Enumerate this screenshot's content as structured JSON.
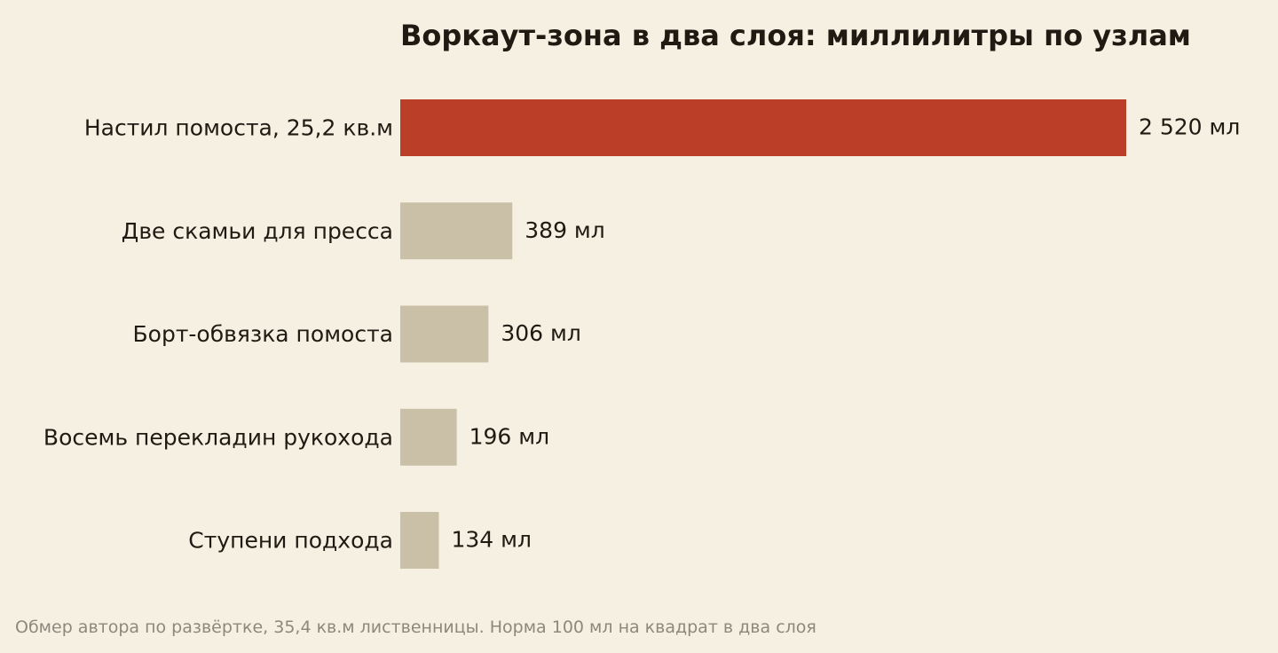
{
  "chart_data": {
    "type": "bar",
    "orientation": "horizontal",
    "title": "Воркаут-зона в два слоя: миллилитры по узлам",
    "note": "Обмер автора по развёртке, 35,4 кв.м лиственницы. Норма 100 мл на квадрат в два слоя",
    "unit": "мл",
    "categories": [
      "Настил помоста, 25,2 кв.м",
      "Две скамьи для пресса",
      "Борт-обвязка помоста",
      "Восемь перекладин рукохода",
      "Ступени подхода"
    ],
    "values": [
      2520,
      389,
      306,
      196,
      134
    ],
    "value_labels": [
      "2 520 мл",
      "389 мл",
      "306 мл",
      "196 мл",
      "134 мл"
    ],
    "highlight_index": 0,
    "xlim": [
      0,
      2520
    ],
    "grid": false,
    "axes_visible": false,
    "colors": {
      "highlight": "#bb3e28",
      "default": "#c9c0a7",
      "background": "#f6f0e3",
      "text": "#1f1a12",
      "note": "#8f877b"
    }
  }
}
